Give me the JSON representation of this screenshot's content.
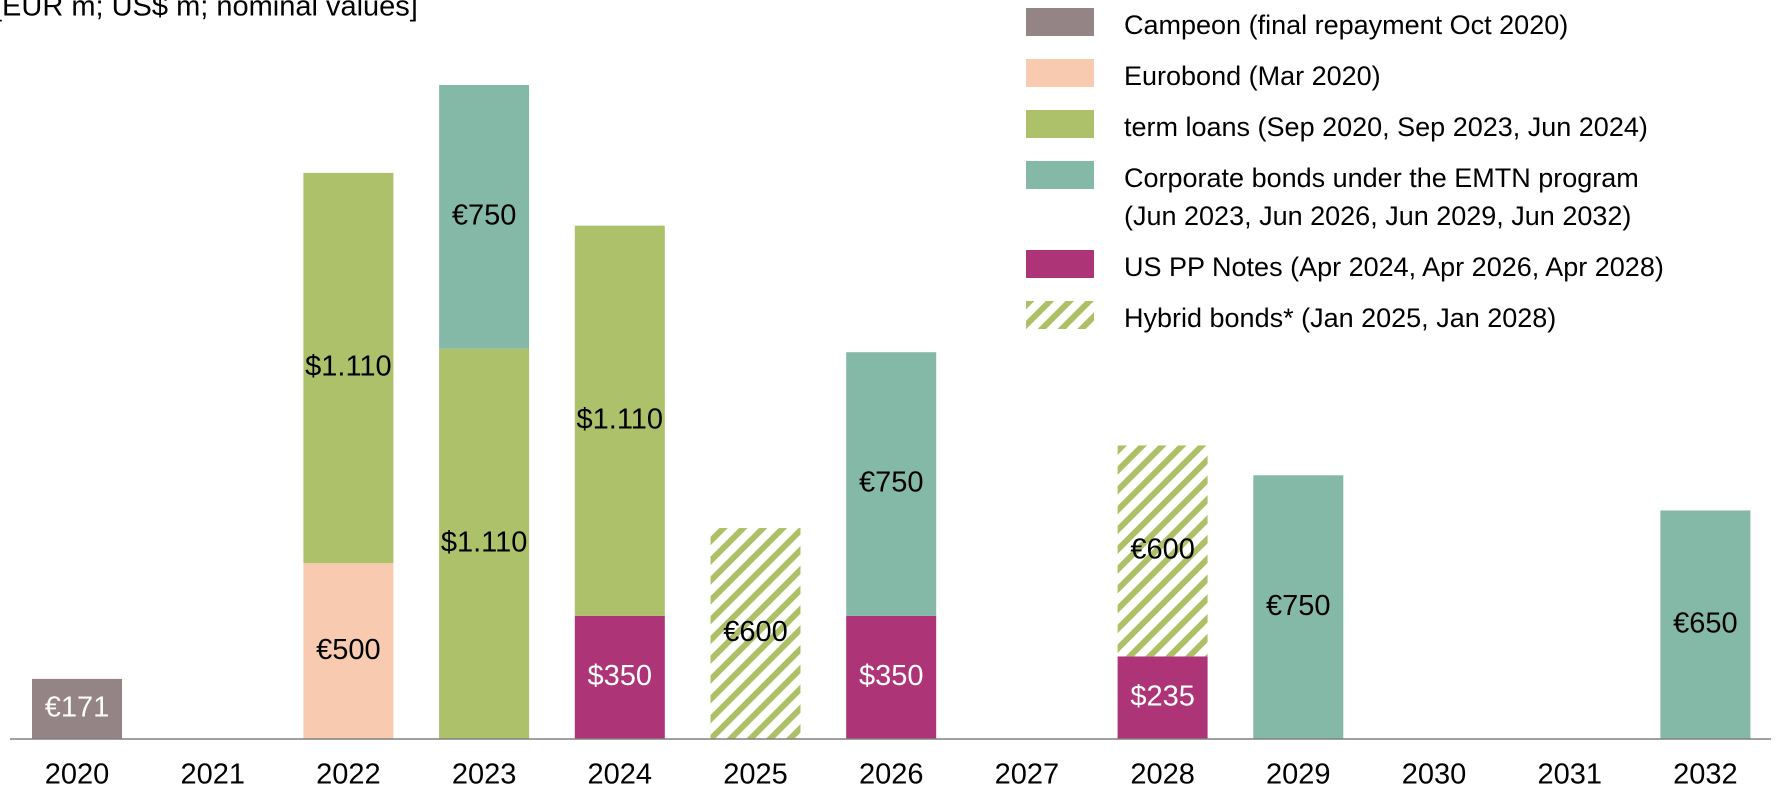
{
  "chart_data": {
    "type": "stacked_bar",
    "subtitle": "[EUR m; US$ m; nominal values]",
    "categories": [
      "2020",
      "2021",
      "2022",
      "2023",
      "2024",
      "2025",
      "2026",
      "2027",
      "2028",
      "2029",
      "2030",
      "2031",
      "2032"
    ],
    "stack_order": [
      0,
      1,
      4,
      2,
      5,
      3
    ],
    "series": [
      {
        "name": "Campeon (final repayment Oct 2020)",
        "color": "#948486",
        "label_color": "#ffffff",
        "values": [
          171,
          null,
          null,
          null,
          null,
          null,
          null,
          null,
          null,
          null,
          null,
          null,
          null
        ],
        "value_labels": [
          "€171",
          null,
          null,
          null,
          null,
          null,
          null,
          null,
          null,
          null,
          null,
          null,
          null
        ]
      },
      {
        "name": "Eurobond (Mar 2020)",
        "color": "#f8cbb0",
        "label_color": "#000000",
        "values": [
          null,
          null,
          500,
          null,
          null,
          null,
          null,
          null,
          null,
          null,
          null,
          null,
          null
        ],
        "value_labels": [
          null,
          null,
          "€500",
          null,
          null,
          null,
          null,
          null,
          null,
          null,
          null,
          null,
          null
        ]
      },
      {
        "name": "term loans (Sep 2020, Sep 2023, Jun 2024)",
        "color": "#adc06a",
        "label_color": "#000000",
        "values": [
          null,
          null,
          1110,
          1110,
          1110,
          null,
          null,
          null,
          null,
          null,
          null,
          null,
          null
        ],
        "value_labels": [
          null,
          null,
          "$1.110",
          "$1.110",
          "$1.110",
          null,
          null,
          null,
          null,
          null,
          null,
          null,
          null
        ]
      },
      {
        "name": "Corporate bonds under the EMTN program (Jun 2023, Jun 2026, Jun 2029, Jun 2032)",
        "color": "#84b8a7",
        "label_color": "#000000",
        "values": [
          null,
          null,
          null,
          750,
          null,
          null,
          750,
          null,
          null,
          750,
          null,
          null,
          650
        ],
        "value_labels": [
          null,
          null,
          null,
          "€750",
          null,
          null,
          "€750",
          null,
          null,
          "€750",
          null,
          null,
          "€650"
        ]
      },
      {
        "name": "US PP Notes (Apr 2024, Apr 2026, Apr 2028)",
        "color": "#ad3476",
        "label_color": "#ffffff",
        "values": [
          null,
          null,
          null,
          null,
          350,
          null,
          350,
          null,
          235,
          null,
          null,
          null,
          null
        ],
        "value_labels": [
          null,
          null,
          null,
          null,
          "$350",
          null,
          "$350",
          null,
          "$235",
          null,
          null,
          null,
          null
        ]
      },
      {
        "name": "Hybrid bonds* (Jan 2025, Jan 2028)",
        "color": "#aec066",
        "pattern": "hatch",
        "label_color": "#000000",
        "values": [
          null,
          null,
          null,
          null,
          null,
          600,
          null,
          null,
          600,
          null,
          null,
          null,
          null
        ],
        "value_labels": [
          null,
          null,
          null,
          null,
          null,
          "€600",
          null,
          null,
          "€600",
          null,
          null,
          null,
          null
        ]
      }
    ]
  }
}
